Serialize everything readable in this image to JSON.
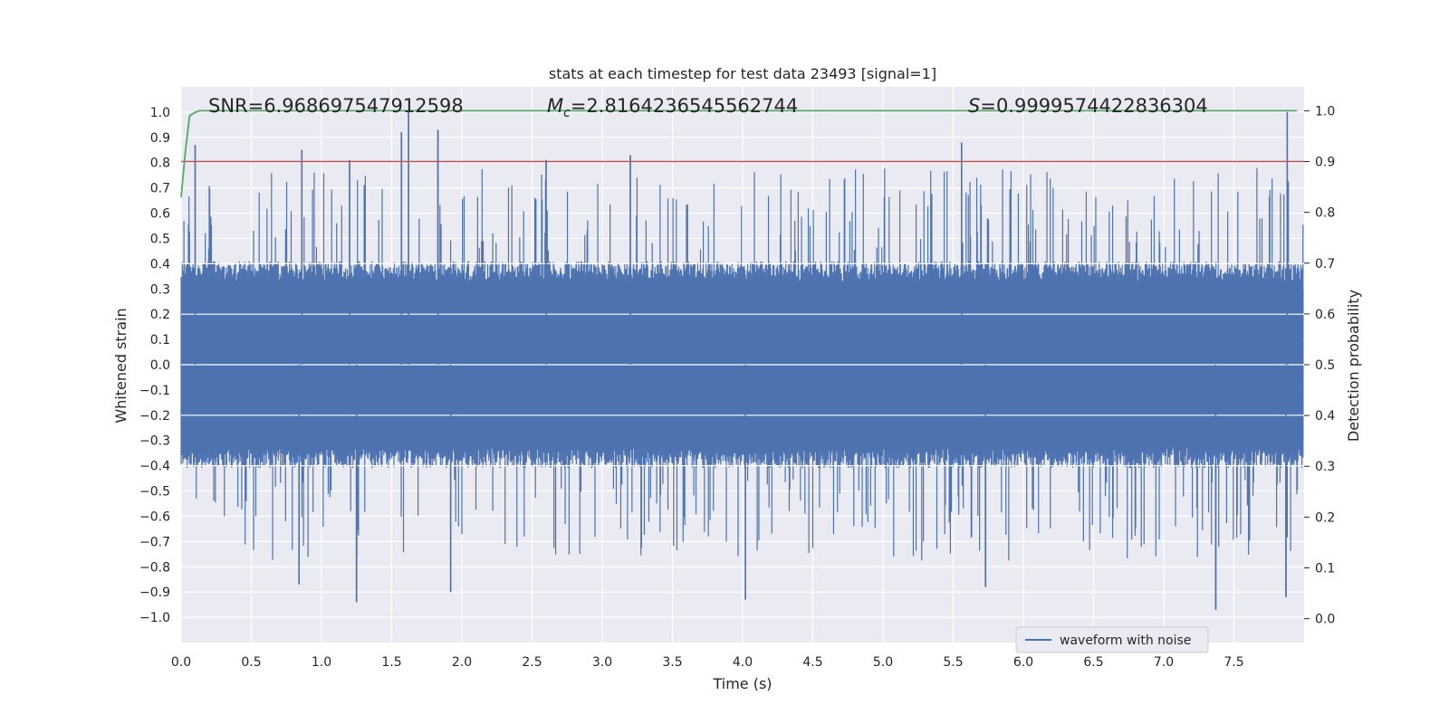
{
  "chart_data": {
    "type": "line",
    "title": "stats at each timestep for test data 23493 [signal=1]",
    "xlabel": "Time (s)",
    "ylabel": "Whitened strain",
    "y2label": "Detection probability",
    "xlim": [
      0.0,
      8.0
    ],
    "ylim": [
      -1.1,
      1.1
    ],
    "y2lim": [
      -0.047,
      1.047
    ],
    "xticks": [
      "0.0",
      "0.5",
      "1.0",
      "1.5",
      "2.0",
      "2.5",
      "3.0",
      "3.5",
      "4.0",
      "4.5",
      "5.0",
      "5.5",
      "6.0",
      "6.5",
      "7.0",
      "7.5"
    ],
    "yticks": [
      "−1.0",
      "−0.9",
      "−0.8",
      "−0.7",
      "−0.6",
      "−0.5",
      "−0.4",
      "−0.3",
      "−0.2",
      "−0.1",
      "0.0",
      "0.1",
      "0.2",
      "0.3",
      "0.4",
      "0.5",
      "0.6",
      "0.7",
      "0.8",
      "0.9",
      "1.0"
    ],
    "y2ticks": [
      "0.0",
      "0.1",
      "0.2",
      "0.3",
      "0.4",
      "0.5",
      "0.6",
      "0.7",
      "0.8",
      "0.9",
      "1.0"
    ],
    "annotations": {
      "snr": "SNR=6.968697547912598",
      "mc_symbol": "M",
      "mc_subscript": "c",
      "mc_value": "=2.8164236545562744",
      "s_symbol": "S",
      "s_value": "=0.9999574422836304"
    },
    "legend": {
      "label": "waveform with noise",
      "placement": "lower-right"
    },
    "series": [
      {
        "name": "waveform with noise",
        "color": "#4c72b0",
        "description": "dense noisy whitened strain, amplitude mostly within ±0.4, spikes up to ±1.0",
        "peaks": [
          {
            "t": 1.62,
            "v": 1.0
          },
          {
            "t": 7.88,
            "v": 1.0
          },
          {
            "t": 1.83,
            "v": 0.93
          },
          {
            "t": 1.57,
            "v": 0.92
          },
          {
            "t": 5.56,
            "v": 0.88
          },
          {
            "t": 0.1,
            "v": 0.87
          },
          {
            "t": 0.86,
            "v": 0.85
          },
          {
            "t": 3.2,
            "v": 0.83
          },
          {
            "t": 1.2,
            "v": 0.81
          },
          {
            "t": 2.6,
            "v": 0.81
          },
          {
            "t": 1.25,
            "v": -0.94
          },
          {
            "t": 4.02,
            "v": -0.93
          },
          {
            "t": 7.37,
            "v": -0.97
          },
          {
            "t": 7.87,
            "v": -0.92
          },
          {
            "t": 1.92,
            "v": -0.9
          },
          {
            "t": 0.84,
            "v": -0.87
          },
          {
            "t": 5.73,
            "v": -0.88
          }
        ]
      },
      {
        "name": "detection probability",
        "color": "#55a868",
        "axis": "right",
        "x": [
          0.0,
          0.03,
          0.06,
          0.1,
          0.13,
          7.95
        ],
        "y": [
          0.83,
          0.92,
          0.99,
          0.997,
          1.0,
          1.0
        ]
      },
      {
        "name": "threshold",
        "color": "#c44e52",
        "axis": "right",
        "value": 0.9
      }
    ]
  }
}
